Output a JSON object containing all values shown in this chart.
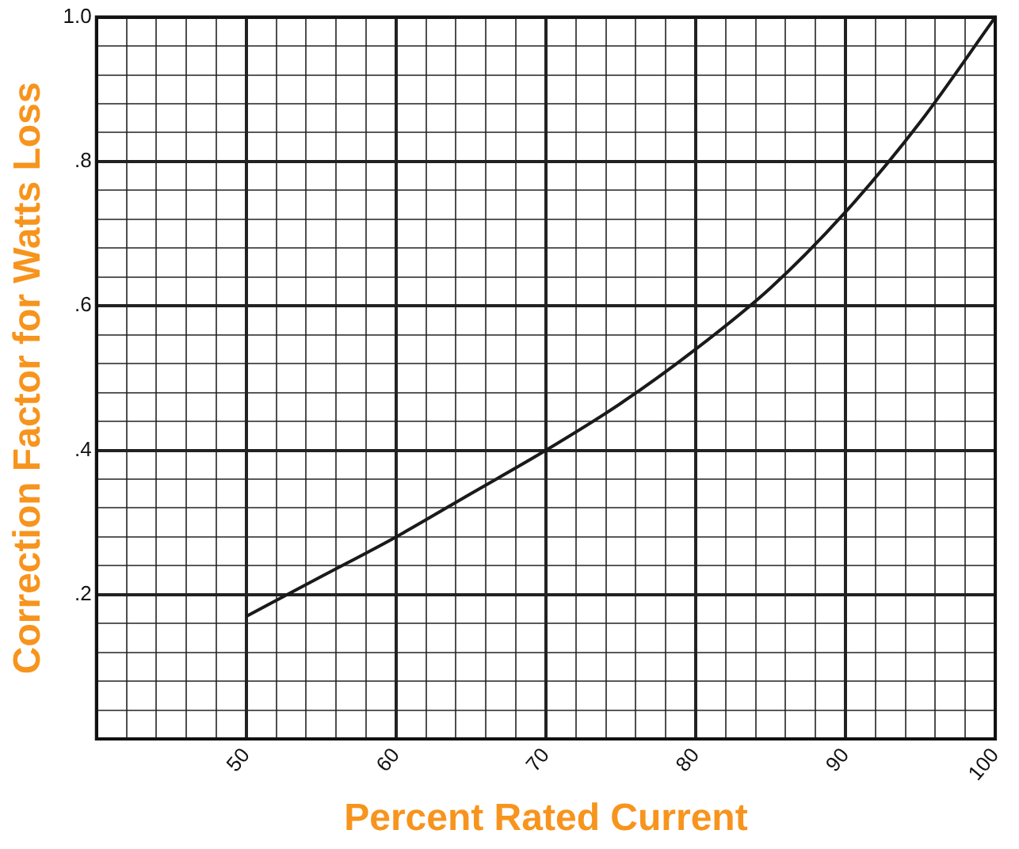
{
  "chart_data": {
    "type": "line",
    "xlabel": "Percent Rated Current",
    "ylabel": "Correction Factor for Watts Loss",
    "x": [
      50,
      55,
      60,
      65,
      70,
      75,
      80,
      85,
      90,
      95,
      100
    ],
    "series": [
      {
        "color": "#1a1a1a",
        "values": [
          0.17,
          0.225,
          0.28,
          0.34,
          0.4,
          0.465,
          0.54,
          0.625,
          0.73,
          0.855,
          1.0
        ]
      }
    ],
    "xlim": [
      40,
      100
    ],
    "xticks": [
      {
        "value": 40,
        "label": null
      },
      {
        "value": 42,
        "label": null
      },
      {
        "value": 44,
        "label": null
      },
      {
        "value": 46,
        "label": null
      },
      {
        "value": 48,
        "label": null
      },
      50,
      {
        "value": 52,
        "label": null
      },
      {
        "value": 54,
        "label": null
      },
      {
        "value": 56,
        "label": null
      },
      {
        "value": 58,
        "label": null
      },
      60,
      {
        "value": 62,
        "label": null
      },
      {
        "value": 64,
        "label": null
      },
      {
        "value": 66,
        "label": null
      },
      {
        "value": 68,
        "label": null
      },
      70,
      {
        "value": 72,
        "label": null
      },
      {
        "value": 74,
        "label": null
      },
      {
        "value": 76,
        "label": null
      },
      {
        "value": 78,
        "label": null
      },
      80,
      {
        "value": 82,
        "label": null
      },
      {
        "value": 84,
        "label": null
      },
      {
        "value": 86,
        "label": null
      },
      {
        "value": 88,
        "label": null
      },
      90,
      {
        "value": 92,
        "label": null
      },
      {
        "value": 94,
        "label": null
      },
      {
        "value": 96,
        "label": null
      },
      {
        "value": 98,
        "label": null
      },
      100
    ],
    "ylim": [
      0,
      1
    ],
    "yticks": [
      {
        "value": 0,
        "label": null
      },
      {
        "value": 0.04,
        "label": null
      },
      {
        "value": 0.08,
        "label": null
      },
      {
        "value": 0.12,
        "label": null
      },
      {
        "value": 0.16,
        "label": null
      },
      {
        "value": 0.2,
        "label": ".2"
      },
      {
        "value": 0.24,
        "label": null
      },
      {
        "value": 0.28,
        "label": null
      },
      {
        "value": 0.32,
        "label": null
      },
      {
        "value": 0.36,
        "label": null
      },
      {
        "value": 0.4,
        "label": ".4"
      },
      {
        "value": 0.44,
        "label": null
      },
      {
        "value": 0.48,
        "label": null
      },
      {
        "value": 0.52,
        "label": null
      },
      {
        "value": 0.56,
        "label": null
      },
      {
        "value": 0.6,
        "label": ".6"
      },
      {
        "value": 0.64,
        "label": null
      },
      {
        "value": 0.68,
        "label": null
      },
      {
        "value": 0.72,
        "label": null
      },
      {
        "value": 0.76,
        "label": null
      },
      {
        "value": 0.8,
        "label": ".8"
      },
      {
        "value": 0.84,
        "label": null
      },
      {
        "value": 0.88,
        "label": null
      },
      {
        "value": 0.92,
        "label": null
      },
      {
        "value": 0.96,
        "label": null
      },
      {
        "value": 1.0,
        "label": "1.0"
      }
    ],
    "grid": true,
    "legend": false,
    "marker": "none",
    "line_style": "solid"
  }
}
